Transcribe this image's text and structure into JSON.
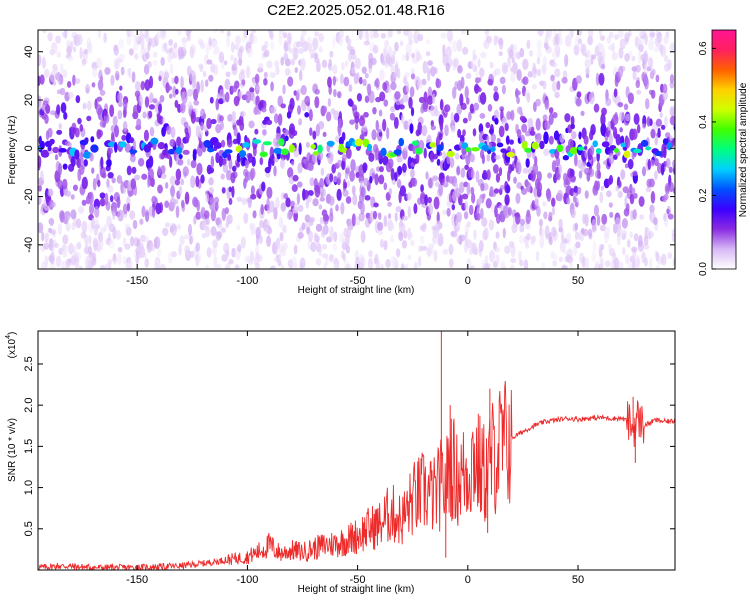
{
  "title": "C2E2.2025.052.01.48.R16",
  "chart_data": [
    {
      "type": "heatmap",
      "xlabel": "Height of straight line (km)",
      "ylabel": "Frequency (Hz)",
      "xlim": [
        -195,
        94
      ],
      "ylim": [
        -50,
        49
      ],
      "xticks": [
        -150,
        -100,
        -50,
        0,
        50
      ],
      "yticks": [
        -40,
        -20,
        0,
        20,
        40
      ],
      "colorbar": {
        "label": "Normalized spectral amplitude",
        "range": [
          0.0,
          0.65
        ],
        "ticks": [
          0.0,
          0.2,
          0.4,
          0.6
        ],
        "colors": [
          "#ffffff",
          "#d7b8f5",
          "#8a2be2",
          "#3b00ff",
          "#0050ff",
          "#00d0ff",
          "#00ff80",
          "#40ff00",
          "#d0ff00",
          "#ffd000",
          "#ff6000",
          "#ff2060",
          "#ff1493"
        ]
      },
      "description_note": "",
      "features": {
        "central_ridge_frequency": 0,
        "ridge_peak_amplitude": 0.45,
        "background_amplitude": 0.12
      }
    },
    {
      "type": "line",
      "xlabel": "Height of straight line (km)",
      "ylabel": "SNR (10 * v/v)",
      "yscale_label": "(x10",
      "yscale_exp": "4",
      "xlim": [
        -195,
        94
      ],
      "ylim": [
        0,
        2.9
      ],
      "xticks": [
        -150,
        -100,
        -50,
        0,
        50
      ],
      "yticks": [
        0.5,
        1.0,
        1.5,
        2.0,
        2.5
      ],
      "line_color": "#ee2b2b",
      "series": [
        {
          "x": [
            -195,
            -185,
            -170,
            -160,
            -150,
            -140,
            -130,
            -120,
            -110,
            -100,
            -95,
            -90,
            -85,
            -80,
            -75,
            -70,
            -65,
            -60,
            -55,
            -50,
            -45,
            -40,
            -35,
            -30,
            -25,
            -20,
            -15,
            -12,
            -10,
            -8,
            -5,
            0,
            3,
            5,
            8,
            10,
            12,
            15,
            20,
            25,
            30,
            35,
            40,
            45,
            50,
            55,
            60,
            65,
            70,
            73,
            75,
            77,
            80,
            85,
            90,
            94
          ],
          "y": [
            0.03,
            0.05,
            0.03,
            0.03,
            0.03,
            0.04,
            0.05,
            0.08,
            0.12,
            0.16,
            0.22,
            0.3,
            0.2,
            0.24,
            0.22,
            0.26,
            0.3,
            0.32,
            0.36,
            0.42,
            0.5,
            0.55,
            0.7,
            0.6,
            0.85,
            0.95,
            0.9,
            1.05,
            1.0,
            1.35,
            1.1,
            1.2,
            1.4,
            1.25,
            1.15,
            1.3,
            1.4,
            1.5,
            1.6,
            1.68,
            1.75,
            1.8,
            1.82,
            1.84,
            1.83,
            1.84,
            1.85,
            1.84,
            1.84,
            1.8,
            1.7,
            1.85,
            1.75,
            1.82,
            1.8,
            1.81
          ],
          "spikes": [
            {
              "x": -12,
              "y": 2.9
            },
            {
              "x": -10,
              "y": 0.15
            },
            {
              "x": -8,
              "y": 2.0
            },
            {
              "x": 10,
              "y": 2.2
            },
            {
              "x": 9,
              "y": 0.45
            },
            {
              "x": 75,
              "y": 2.1
            },
            {
              "x": 76,
              "y": 1.3
            }
          ]
        }
      ]
    }
  ]
}
